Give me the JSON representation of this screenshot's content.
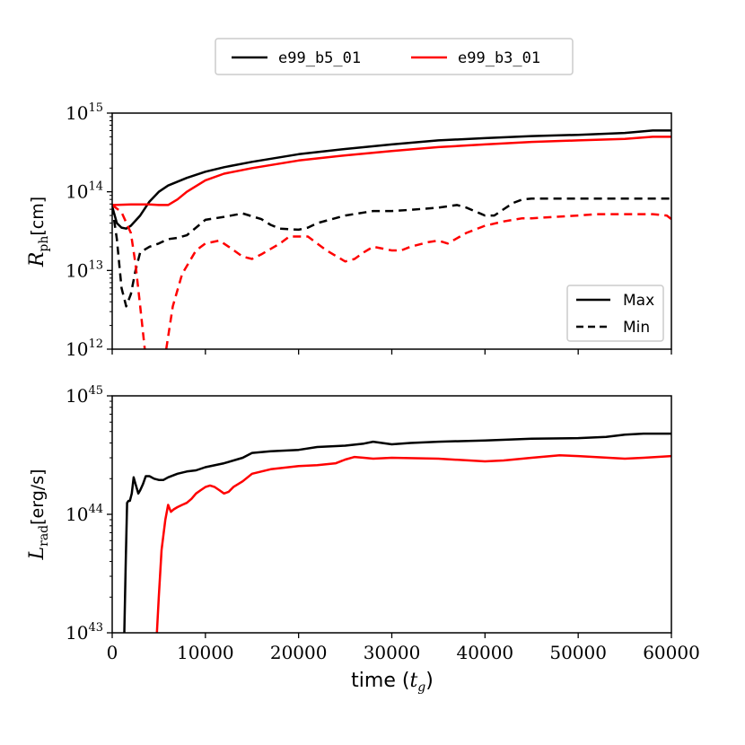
{
  "chart_data": {
    "type": "line",
    "title": "",
    "legend_top": {
      "placement": "top-center",
      "entries": [
        {
          "label": "e99_b5_01",
          "color": "#000000"
        },
        {
          "label": "e99_b3_01",
          "color": "#ff0000"
        }
      ]
    },
    "xlabel": "time (t_g)",
    "xlabel_parts": {
      "main": "time (",
      "var": "t",
      "sub": "g",
      "close": ")"
    },
    "xlim": [
      0,
      60000
    ],
    "xticks": [
      0,
      10000,
      20000,
      30000,
      40000,
      50000,
      60000
    ],
    "xtick_labels": [
      "0",
      "10000",
      "20000",
      "30000",
      "40000",
      "50000",
      "60000"
    ],
    "panels": [
      {
        "ylabel": "R_ph [cm]",
        "ylabel_parts": {
          "var": "R",
          "sub": "ph",
          "unit": "[cm]"
        },
        "yscale": "log",
        "ylim": [
          1000000000000.0,
          1000000000000000.0
        ],
        "yticks": [
          {
            "base": "10",
            "exp": "12"
          },
          {
            "base": "10",
            "exp": "13"
          },
          {
            "base": "10",
            "exp": "14"
          },
          {
            "base": "10",
            "exp": "15"
          }
        ],
        "legend": {
          "placement": "lower-right",
          "entries": [
            {
              "label": "Max",
              "style": "solid"
            },
            {
              "label": "Min",
              "style": "dashed"
            }
          ]
        },
        "series": [
          {
            "name": "e99_b5_01 Max",
            "color": "#000000",
            "style": "solid",
            "x": [
              0,
              500,
              1000,
              1500,
              2000,
              3000,
              4000,
              5000,
              6000,
              8000,
              10000,
              12000,
              15000,
              20000,
              25000,
              30000,
              35000,
              40000,
              45000,
              50000,
              55000,
              58000,
              60000
            ],
            "y": [
              65000000000000.0,
              40000000000000.0,
              35000000000000.0,
              34000000000000.0,
              37000000000000.0,
              50000000000000.0,
              75000000000000.0,
              100000000000000.0,
              120000000000000.0,
              150000000000000.0,
              180000000000000.0,
              205000000000000.0,
              240000000000000.0,
              300000000000000.0,
              350000000000000.0,
              400000000000000.0,
              450000000000000.0,
              480000000000000.0,
              510000000000000.0,
              530000000000000.0,
              560000000000000.0,
              600000000000000.0,
              600000000000000.0
            ]
          },
          {
            "name": "e99_b3_01 Max",
            "color": "#ff0000",
            "style": "solid",
            "x": [
              0,
              2000,
              4000,
              5000,
              6000,
              7000,
              8000,
              10000,
              12000,
              15000,
              20000,
              25000,
              30000,
              35000,
              40000,
              45000,
              50000,
              55000,
              58000,
              60000
            ],
            "y": [
              68000000000000.0,
              69000000000000.0,
              69000000000000.0,
              68000000000000.0,
              68000000000000.0,
              80000000000000.0,
              100000000000000.0,
              140000000000000.0,
              170000000000000.0,
              200000000000000.0,
              250000000000000.0,
              290000000000000.0,
              330000000000000.0,
              370000000000000.0,
              400000000000000.0,
              430000000000000.0,
              450000000000000.0,
              470000000000000.0,
              500000000000000.0,
              500000000000000.0
            ]
          },
          {
            "name": "e99_b5_01 Min",
            "color": "#000000",
            "style": "dashed",
            "x": [
              0,
              500,
              1000,
              1500,
              2000,
              2500,
              3000,
              4000,
              5000,
              6000,
              7000,
              8000,
              9000,
              10000,
              12000,
              14000,
              16000,
              17000,
              18000,
              20000,
              21000,
              22000,
              25000,
              28000,
              30000,
              32000,
              35000,
              37000,
              38000,
              40000,
              41000,
              42000,
              43000,
              44000,
              45000,
              50000,
              55000,
              60000
            ],
            "y": [
              65000000000000.0,
              25000000000000.0,
              6000000000000.0,
              3500000000000.0,
              5000000000000.0,
              10000000000000.0,
              17000000000000.0,
              20000000000000.0,
              22000000000000.0,
              25000000000000.0,
              26000000000000.0,
              28000000000000.0,
              35000000000000.0,
              44000000000000.0,
              48000000000000.0,
              53000000000000.0,
              45000000000000.0,
              38000000000000.0,
              34000000000000.0,
              33000000000000.0,
              35000000000000.0,
              40000000000000.0,
              50000000000000.0,
              57000000000000.0,
              57000000000000.0,
              59000000000000.0,
              63000000000000.0,
              68000000000000.0,
              63000000000000.0,
              50000000000000.0,
              50000000000000.0,
              60000000000000.0,
              72000000000000.0,
              80000000000000.0,
              82000000000000.0,
              82000000000000.0,
              82000000000000.0,
              82000000000000.0
            ]
          },
          {
            "name": "e99_b3_01 Min",
            "color": "#ff0000",
            "style": "dashed",
            "x": [
              0,
              1000,
              2000,
              2500,
              3000,
              3500,
              null,
              5800,
              6500,
              7500,
              9000,
              10000,
              11500,
              12500,
              14000,
              15000,
              16000,
              18000,
              19000,
              20000,
              21000,
              22000,
              23000,
              25000,
              26000,
              27000,
              28000,
              30000,
              31000,
              32000,
              34000,
              35000,
              36000,
              38000,
              40000,
              42000,
              44000,
              45000,
              50000,
              52000,
              55000,
              58000,
              59500,
              60000
            ],
            "y": [
              68000000000000.0,
              55000000000000.0,
              30000000000000.0,
              12000000000000.0,
              3500000000000.0,
              1000000000000.0,
              null,
              1000000000000.0,
              3500000000000.0,
              9000000000000.0,
              18000000000000.0,
              22000000000000.0,
              24000000000000.0,
              20000000000000.0,
              15000000000000.0,
              14000000000000.0,
              16000000000000.0,
              22000000000000.0,
              27000000000000.0,
              27000000000000.0,
              27000000000000.0,
              22000000000000.0,
              18000000000000.0,
              13000000000000.0,
              14000000000000.0,
              17000000000000.0,
              20000000000000.0,
              18000000000000.0,
              18000000000000.0,
              20000000000000.0,
              23000000000000.0,
              24000000000000.0,
              22000000000000.0,
              30000000000000.0,
              37000000000000.0,
              42000000000000.0,
              46000000000000.0,
              46000000000000.0,
              50000000000000.0,
              52000000000000.0,
              52000000000000.0,
              52000000000000.0,
              50000000000000.0,
              45000000000000.0
            ]
          }
        ]
      },
      {
        "ylabel": "L_rad [erg/s]",
        "ylabel_parts": {
          "var": "L",
          "sub": "rad",
          "unit": "[erg/s]"
        },
        "yscale": "log",
        "ylim": [
          1e+43,
          1e+45
        ],
        "yticks": [
          {
            "base": "10",
            "exp": "43"
          },
          {
            "base": "10",
            "exp": "44"
          },
          {
            "base": "10",
            "exp": "45"
          }
        ],
        "series": [
          {
            "name": "e99_b5_01",
            "color": "#000000",
            "style": "solid",
            "x": [
              1300,
              1450,
              1600,
              1750,
              1900,
              2100,
              2300,
              2500,
              2800,
              3000,
              3300,
              3600,
              4000,
              4500,
              5000,
              5500,
              6000,
              7000,
              8000,
              9000,
              10000,
              12000,
              14000,
              15000,
              17000,
              20000,
              22000,
              25000,
              27000,
              28000,
              30000,
              32000,
              35000,
              40000,
              45000,
              50000,
              53000,
              55000,
              57000,
              60000
            ],
            "y": [
              1e+43,
              4e+43,
              1.25e+44,
              1.3e+44,
              1.3e+44,
              1.5e+44,
              2.05e+44,
              1.8e+44,
              1.5e+44,
              1.6e+44,
              1.8e+44,
              2.1e+44,
              2.1e+44,
              2e+44,
              1.95e+44,
              1.95e+44,
              2.05e+44,
              2.2e+44,
              2.3e+44,
              2.35e+44,
              2.5e+44,
              2.7e+44,
              3e+44,
              3.3e+44,
              3.4e+44,
              3.5e+44,
              3.7e+44,
              3.8e+44,
              3.95e+44,
              4.1e+44,
              3.9e+44,
              4e+44,
              4.1e+44,
              4.2e+44,
              4.35e+44,
              4.4e+44,
              4.5e+44,
              4.7e+44,
              4.8e+44,
              4.8e+44
            ]
          },
          {
            "name": "e99_b3_01",
            "color": "#ff0000",
            "style": "solid",
            "x": [
              4800,
              5000,
              5300,
              5700,
              6000,
              6300,
              6600,
              7000,
              7500,
              8000,
              8500,
              9000,
              9500,
              10000,
              10500,
              11000,
              11500,
              12000,
              12500,
              13000,
              14000,
              15000,
              17000,
              20000,
              22000,
              24000,
              25000,
              26000,
              27000,
              28000,
              30000,
              35000,
              40000,
              42000,
              45000,
              48000,
              50000,
              55000,
              57000,
              60000
            ],
            "y": [
              1e+43,
              2e+43,
              5e+43,
              9e+43,
              1.2e+44,
              1.05e+44,
              1.1e+44,
              1.15e+44,
              1.2e+44,
              1.25e+44,
              1.35e+44,
              1.5e+44,
              1.6e+44,
              1.7e+44,
              1.75e+44,
              1.7e+44,
              1.6e+44,
              1.5e+44,
              1.55e+44,
              1.7e+44,
              1.9e+44,
              2.2e+44,
              2.4e+44,
              2.55e+44,
              2.6e+44,
              2.7e+44,
              2.9e+44,
              3.05e+44,
              3e+44,
              2.95e+44,
              3e+44,
              2.95e+44,
              2.8e+44,
              2.85e+44,
              3e+44,
              3.15e+44,
              3.1e+44,
              2.95e+44,
              3e+44,
              3.1e+44
            ]
          }
        ]
      }
    ]
  }
}
